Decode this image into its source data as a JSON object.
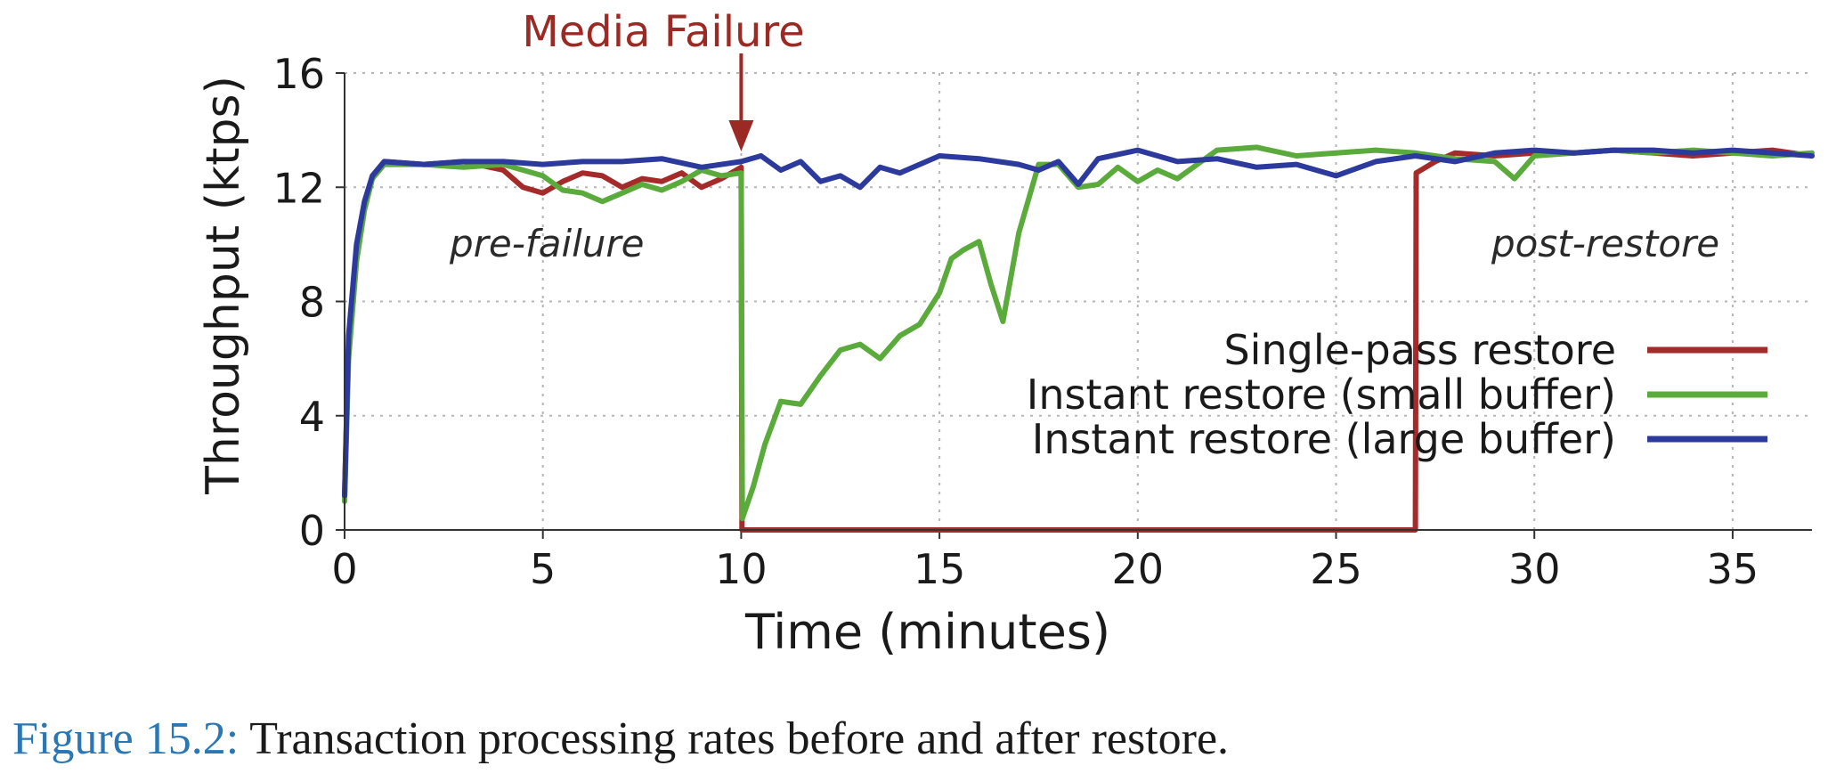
{
  "chart_data": {
    "type": "line",
    "xlabel": "Time (minutes)",
    "ylabel": "Throughput (ktps)",
    "xlim": [
      0,
      37
    ],
    "ylim": [
      0,
      16
    ],
    "xticks": [
      "0",
      "5",
      "10",
      "15",
      "20",
      "25",
      "30",
      "35"
    ],
    "yticks": [
      "0",
      "4",
      "8",
      "12",
      "16"
    ],
    "grid": true,
    "legend_position": "right-middle",
    "annotations": {
      "failure_label": "Media Failure",
      "failure_x": 10,
      "pre_failure": "pre-failure",
      "post_restore": "post-restore"
    },
    "series": [
      {
        "name": "Single-pass restore",
        "color": "#a52a2a",
        "x": [
          0,
          0.1,
          0.3,
          0.5,
          0.7,
          1,
          2,
          3,
          4,
          4.5,
          5,
          5.5,
          6,
          6.5,
          7,
          7.5,
          8,
          8.5,
          9,
          9.5,
          10,
          10.02,
          27,
          27.02,
          27.5,
          28,
          29,
          30,
          31,
          32,
          33,
          34,
          35,
          36,
          37
        ],
        "y": [
          1.2,
          6.5,
          9.8,
          11.4,
          12.4,
          12.9,
          12.8,
          12.9,
          12.6,
          12.0,
          11.8,
          12.2,
          12.5,
          12.4,
          12.0,
          12.3,
          12.2,
          12.5,
          12.0,
          12.3,
          12.7,
          0.0,
          0.0,
          12.5,
          12.9,
          13.2,
          13.1,
          13.2,
          13.2,
          13.3,
          13.2,
          13.1,
          13.2,
          13.3,
          13.1
        ]
      },
      {
        "name": "Instant restore (small buffer)",
        "color": "#5aaa3c",
        "x": [
          0,
          0.1,
          0.3,
          0.5,
          0.7,
          1,
          2,
          3,
          4,
          5,
          5.5,
          6,
          6.5,
          7,
          7.5,
          8,
          8.5,
          9,
          9.5,
          10,
          10.03,
          10.3,
          10.6,
          11,
          11.5,
          12,
          12.5,
          13,
          13.5,
          14,
          14.5,
          15,
          15.3,
          15.6,
          16,
          16.3,
          16.6,
          17,
          17.5,
          18,
          18.5,
          19,
          19.5,
          20,
          20.5,
          21,
          21.5,
          22,
          23,
          24,
          25,
          26,
          27,
          28,
          29,
          29.5,
          30,
          31,
          32,
          33,
          34,
          35,
          36,
          37
        ],
        "y": [
          1.0,
          6.0,
          9.4,
          11.2,
          12.3,
          12.8,
          12.8,
          12.7,
          12.8,
          12.4,
          11.9,
          11.8,
          11.5,
          11.8,
          12.1,
          11.9,
          12.2,
          12.6,
          12.4,
          12.5,
          0.4,
          1.5,
          3.0,
          4.5,
          4.4,
          5.4,
          6.3,
          6.5,
          6.0,
          6.8,
          7.2,
          8.3,
          9.5,
          9.8,
          10.1,
          8.6,
          7.3,
          10.4,
          12.8,
          12.8,
          12.0,
          12.1,
          12.7,
          12.2,
          12.6,
          12.3,
          12.8,
          13.3,
          13.4,
          13.1,
          13.2,
          13.3,
          13.2,
          13.0,
          12.9,
          12.3,
          13.1,
          13.2,
          13.3,
          13.2,
          13.3,
          13.2,
          13.1,
          13.2
        ]
      },
      {
        "name": "Instant restore (large buffer)",
        "color": "#2b3a9c",
        "x": [
          0,
          0.1,
          0.3,
          0.5,
          0.7,
          1,
          2,
          3,
          4,
          5,
          6,
          7,
          8,
          9,
          10,
          10.5,
          11,
          11.5,
          12,
          12.5,
          13,
          13.5,
          14,
          15,
          16,
          17,
          17.5,
          18,
          18.5,
          19,
          20,
          21,
          22,
          23,
          24,
          25,
          26,
          27,
          28,
          29,
          30,
          31,
          32,
          33,
          34,
          35,
          36,
          37
        ],
        "y": [
          1.2,
          6.8,
          10.0,
          11.5,
          12.4,
          12.9,
          12.8,
          12.9,
          12.9,
          12.8,
          12.9,
          12.9,
          13.0,
          12.7,
          12.9,
          13.1,
          12.6,
          12.9,
          12.2,
          12.4,
          12.0,
          12.7,
          12.5,
          13.1,
          13.0,
          12.8,
          12.6,
          12.9,
          12.1,
          13.0,
          13.3,
          12.9,
          13.0,
          12.7,
          12.8,
          12.4,
          12.9,
          13.1,
          12.9,
          13.2,
          13.3,
          13.2,
          13.3,
          13.3,
          13.2,
          13.3,
          13.2,
          13.1
        ]
      }
    ]
  },
  "caption": {
    "label": "Figure 15.2:",
    "text": " Transaction processing rates before and after restore."
  }
}
